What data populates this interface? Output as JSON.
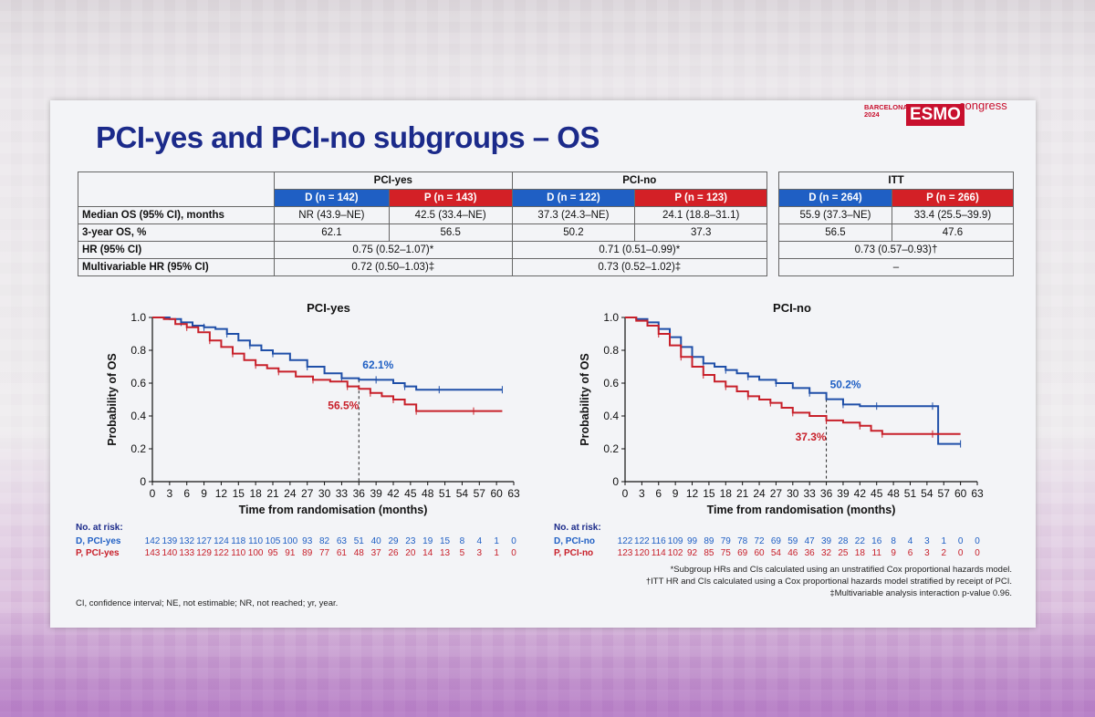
{
  "slide": {
    "title": "PCI-yes and PCI-no subgroups – OS",
    "logo": {
      "city": "BARCELONA",
      "year": "2024",
      "brand": "ESMO",
      "suffix": "congress"
    }
  },
  "table_main": {
    "groups": [
      "PCI-yes",
      "PCI-no"
    ],
    "arms": [
      "D (n = 142)",
      "P (n = 143)",
      "D (n = 122)",
      "P (n = 123)"
    ],
    "rows": [
      {
        "label": "Median OS (95% CI), months",
        "cells": [
          "NR (43.9–NE)",
          "42.5 (33.4–NE)",
          "37.3 (24.3–NE)",
          "24.1 (18.8–31.1)"
        ]
      },
      {
        "label": "3-year OS, %",
        "cells": [
          "62.1",
          "56.5",
          "50.2",
          "37.3"
        ]
      },
      {
        "label": "HR (95% CI)",
        "merged": [
          "0.75 (0.52–1.07)*",
          "0.71 (0.51–0.99)*"
        ]
      },
      {
        "label": "Multivariable HR (95% CI)",
        "merged": [
          "0.72 (0.50–1.03)‡",
          "0.73 (0.52–1.02)‡"
        ]
      }
    ]
  },
  "table_itt": {
    "group": "ITT",
    "arms": [
      "D (n = 264)",
      "P (n = 266)"
    ],
    "rows": [
      {
        "cells": [
          "55.9 (37.3–NE)",
          "33.4 (25.5–39.9)"
        ]
      },
      {
        "cells": [
          "56.5",
          "47.6"
        ]
      },
      {
        "merged": "0.73 (0.57–0.93)†"
      },
      {
        "merged": "–"
      }
    ]
  },
  "chart_data": [
    {
      "type": "line",
      "title": "PCI-yes",
      "xlabel": "Time from randomisation (months)",
      "ylabel": "Probability of OS",
      "xlim": [
        0,
        63
      ],
      "ylim": [
        0,
        1.0
      ],
      "xticks": [
        "0",
        "3",
        "6",
        "9",
        "12",
        "15",
        "18",
        "21",
        "24",
        "27",
        "30",
        "33",
        "36",
        "39",
        "42",
        "45",
        "48",
        "51",
        "54",
        "57",
        "60",
        "63"
      ],
      "yticks": [
        "0",
        "0.2",
        "0.4",
        "0.6",
        "0.8",
        "1.0"
      ],
      "annotations": [
        {
          "text": "62.1%",
          "x": 36,
          "y": 0.621,
          "color": "#1f5fc4"
        },
        {
          "text": "56.5%",
          "x": 36,
          "y": 0.565,
          "color": "#c8202a"
        }
      ],
      "series": [
        {
          "name": "D, PCI-yes",
          "color": "#1f4fa8",
          "points": [
            [
              0,
              1
            ],
            [
              1.5,
              1
            ],
            [
              3,
              0.99
            ],
            [
              5,
              0.97
            ],
            [
              7,
              0.95
            ],
            [
              9,
              0.94
            ],
            [
              11,
              0.93
            ],
            [
              13,
              0.9
            ],
            [
              15,
              0.86
            ],
            [
              17,
              0.83
            ],
            [
              19,
              0.8
            ],
            [
              21,
              0.78
            ],
            [
              24,
              0.74
            ],
            [
              27,
              0.7
            ],
            [
              30,
              0.66
            ],
            [
              33,
              0.63
            ],
            [
              36,
              0.621
            ],
            [
              39,
              0.62
            ],
            [
              42,
              0.6
            ],
            [
              44,
              0.58
            ],
            [
              46,
              0.56
            ],
            [
              50,
              0.56
            ],
            [
              56,
              0.56
            ],
            [
              61,
              0.56
            ]
          ]
        },
        {
          "name": "P, PCI-yes",
          "color": "#c8202a",
          "points": [
            [
              0,
              1
            ],
            [
              2,
              0.99
            ],
            [
              4,
              0.96
            ],
            [
              6,
              0.94
            ],
            [
              8,
              0.91
            ],
            [
              10,
              0.86
            ],
            [
              12,
              0.82
            ],
            [
              14,
              0.78
            ],
            [
              16,
              0.74
            ],
            [
              18,
              0.71
            ],
            [
              20,
              0.69
            ],
            [
              22,
              0.67
            ],
            [
              25,
              0.64
            ],
            [
              28,
              0.62
            ],
            [
              31,
              0.61
            ],
            [
              34,
              0.58
            ],
            [
              36,
              0.565
            ],
            [
              38,
              0.54
            ],
            [
              40,
              0.52
            ],
            [
              42,
              0.5
            ],
            [
              44,
              0.47
            ],
            [
              46,
              0.43
            ],
            [
              50,
              0.43
            ],
            [
              56,
              0.43
            ],
            [
              61,
              0.43
            ]
          ]
        }
      ]
    },
    {
      "type": "line",
      "title": "PCI-no",
      "xlabel": "Time from randomisation (months)",
      "ylabel": "Probability of OS",
      "xlim": [
        0,
        63
      ],
      "ylim": [
        0,
        1.0
      ],
      "xticks": [
        "0",
        "3",
        "6",
        "9",
        "12",
        "15",
        "18",
        "21",
        "24",
        "27",
        "30",
        "33",
        "36",
        "39",
        "42",
        "45",
        "48",
        "51",
        "54",
        "57",
        "60",
        "63"
      ],
      "yticks": [
        "0",
        "0.2",
        "0.4",
        "0.6",
        "0.8",
        "1.0"
      ],
      "annotations": [
        {
          "text": "50.2%",
          "x": 36,
          "y": 0.502,
          "color": "#1f5fc4"
        },
        {
          "text": "37.3%",
          "x": 36,
          "y": 0.373,
          "color": "#c8202a"
        }
      ],
      "series": [
        {
          "name": "D, PCI-no",
          "color": "#1f4fa8",
          "points": [
            [
              0,
              1
            ],
            [
              2,
              0.99
            ],
            [
              4,
              0.97
            ],
            [
              6,
              0.93
            ],
            [
              8,
              0.88
            ],
            [
              10,
              0.82
            ],
            [
              12,
              0.76
            ],
            [
              14,
              0.72
            ],
            [
              16,
              0.7
            ],
            [
              18,
              0.68
            ],
            [
              20,
              0.66
            ],
            [
              22,
              0.64
            ],
            [
              24,
              0.62
            ],
            [
              27,
              0.6
            ],
            [
              30,
              0.57
            ],
            [
              33,
              0.54
            ],
            [
              36,
              0.502
            ],
            [
              39,
              0.47
            ],
            [
              42,
              0.46
            ],
            [
              45,
              0.46
            ],
            [
              50,
              0.46
            ],
            [
              55,
              0.46
            ],
            [
              56,
              0.23
            ],
            [
              60,
              0.23
            ]
          ]
        },
        {
          "name": "P, PCI-no",
          "color": "#c8202a",
          "points": [
            [
              0,
              1
            ],
            [
              2,
              0.98
            ],
            [
              4,
              0.95
            ],
            [
              6,
              0.9
            ],
            [
              8,
              0.83
            ],
            [
              10,
              0.76
            ],
            [
              12,
              0.7
            ],
            [
              14,
              0.65
            ],
            [
              16,
              0.61
            ],
            [
              18,
              0.58
            ],
            [
              20,
              0.55
            ],
            [
              22,
              0.52
            ],
            [
              24,
              0.5
            ],
            [
              26,
              0.48
            ],
            [
              28,
              0.45
            ],
            [
              30,
              0.42
            ],
            [
              33,
              0.4
            ],
            [
              36,
              0.373
            ],
            [
              39,
              0.36
            ],
            [
              42,
              0.34
            ],
            [
              44,
              0.31
            ],
            [
              46,
              0.29
            ],
            [
              50,
              0.29
            ],
            [
              55,
              0.29
            ],
            [
              60,
              0.29
            ]
          ]
        }
      ]
    }
  ],
  "risk_tables": [
    {
      "header": "No. at risk:",
      "rows": [
        {
          "label": "D, PCI-yes",
          "color": "#1f5fc4",
          "values": [
            "142",
            "139",
            "132",
            "127",
            "124",
            "118",
            "110",
            "105",
            "100",
            "93",
            "82",
            "63",
            "51",
            "40",
            "29",
            "23",
            "19",
            "15",
            "8",
            "4",
            "1",
            "0"
          ]
        },
        {
          "label": "P, PCI-yes",
          "color": "#c8202a",
          "values": [
            "143",
            "140",
            "133",
            "129",
            "122",
            "110",
            "100",
            "95",
            "91",
            "89",
            "77",
            "61",
            "48",
            "37",
            "26",
            "20",
            "14",
            "13",
            "5",
            "3",
            "1",
            "0"
          ]
        }
      ]
    },
    {
      "header": "No. at risk:",
      "rows": [
        {
          "label": "D, PCI-no",
          "color": "#1f5fc4",
          "values": [
            "122",
            "122",
            "116",
            "109",
            "99",
            "89",
            "79",
            "78",
            "72",
            "69",
            "59",
            "47",
            "39",
            "28",
            "22",
            "16",
            "8",
            "4",
            "3",
            "1",
            "0",
            "0"
          ]
        },
        {
          "label": "P, PCI-no",
          "color": "#c8202a",
          "values": [
            "123",
            "120",
            "114",
            "102",
            "92",
            "85",
            "75",
            "69",
            "60",
            "54",
            "46",
            "36",
            "32",
            "25",
            "18",
            "11",
            "9",
            "6",
            "3",
            "2",
            "0",
            "0"
          ]
        }
      ]
    }
  ],
  "footnotes": {
    "left": "CI, confidence interval; NE, not estimable; NR, not reached; yr, year.",
    "right1": "*Subgroup HRs and CIs calculated using an unstratified Cox proportional hazards model.",
    "right2": "†ITT HR and CIs calculated using a Cox proportional hazards model stratified by receipt of PCI.",
    "right3": "‡Multivariable analysis interaction p-value 0.96."
  }
}
